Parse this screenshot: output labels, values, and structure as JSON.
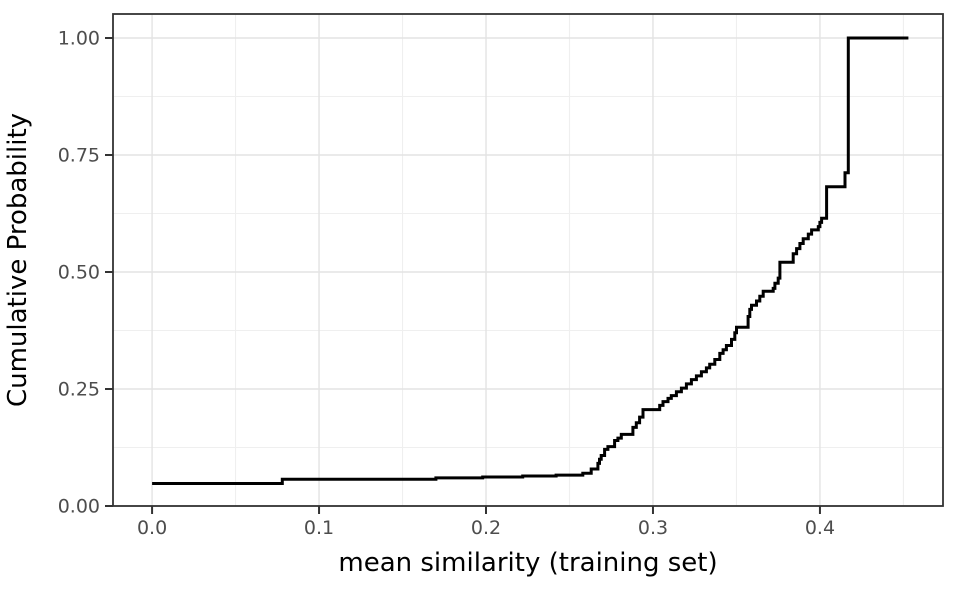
{
  "chart_data": {
    "type": "line",
    "subtype": "ecdf_step",
    "title": "",
    "xlabel": "mean similarity (training set)",
    "ylabel": "Cumulative Probability",
    "xlim": [
      -0.0234,
      0.4737
    ],
    "ylim": [
      0,
      1.0513
    ],
    "grid": "on",
    "legend": "none",
    "x_ticks": {
      "values": [
        0.0,
        0.1,
        0.2,
        0.3,
        0.4
      ],
      "labels": [
        "0.0",
        "0.1",
        "0.2",
        "0.3",
        "0.4"
      ]
    },
    "x_minor_ticks": [
      0.05,
      0.15,
      0.25,
      0.35,
      0.45
    ],
    "y_ticks": {
      "values": [
        0.0,
        0.25,
        0.5,
        0.75,
        1.0
      ],
      "labels": [
        "0.00",
        "0.25",
        "0.50",
        "0.75",
        "1.00"
      ]
    },
    "y_minor_ticks": [
      0.125,
      0.375,
      0.625,
      0.875
    ],
    "series": [
      {
        "name": "ecdf",
        "color": "#000000",
        "points": [
          [
            0.0,
            0.048
          ],
          [
            0.078,
            0.057
          ],
          [
            0.17,
            0.06
          ],
          [
            0.198,
            0.062
          ],
          [
            0.222,
            0.064
          ],
          [
            0.242,
            0.066
          ],
          [
            0.258,
            0.07
          ],
          [
            0.263,
            0.079
          ],
          [
            0.267,
            0.091
          ],
          [
            0.268,
            0.1
          ],
          [
            0.269,
            0.108
          ],
          [
            0.271,
            0.121
          ],
          [
            0.273,
            0.127
          ],
          [
            0.277,
            0.14
          ],
          [
            0.279,
            0.145
          ],
          [
            0.281,
            0.153
          ],
          [
            0.288,
            0.168
          ],
          [
            0.29,
            0.178
          ],
          [
            0.292,
            0.19
          ],
          [
            0.294,
            0.206
          ],
          [
            0.304,
            0.215
          ],
          [
            0.306,
            0.223
          ],
          [
            0.309,
            0.23
          ],
          [
            0.311,
            0.236
          ],
          [
            0.314,
            0.244
          ],
          [
            0.317,
            0.252
          ],
          [
            0.32,
            0.261
          ],
          [
            0.323,
            0.27
          ],
          [
            0.326,
            0.278
          ],
          [
            0.329,
            0.287
          ],
          [
            0.332,
            0.295
          ],
          [
            0.334,
            0.303
          ],
          [
            0.337,
            0.313
          ],
          [
            0.34,
            0.326
          ],
          [
            0.342,
            0.334
          ],
          [
            0.344,
            0.343
          ],
          [
            0.347,
            0.356
          ],
          [
            0.349,
            0.37
          ],
          [
            0.35,
            0.382
          ],
          [
            0.357,
            0.405
          ],
          [
            0.358,
            0.42
          ],
          [
            0.359,
            0.429
          ],
          [
            0.362,
            0.438
          ],
          [
            0.364,
            0.448
          ],
          [
            0.366,
            0.459
          ],
          [
            0.372,
            0.465
          ],
          [
            0.373,
            0.476
          ],
          [
            0.375,
            0.487
          ],
          [
            0.376,
            0.521
          ],
          [
            0.384,
            0.539
          ],
          [
            0.386,
            0.55
          ],
          [
            0.388,
            0.561
          ],
          [
            0.39,
            0.571
          ],
          [
            0.393,
            0.581
          ],
          [
            0.395,
            0.59
          ],
          [
            0.399,
            0.597
          ],
          [
            0.4,
            0.606
          ],
          [
            0.401,
            0.615
          ],
          [
            0.404,
            0.682
          ],
          [
            0.415,
            0.712
          ],
          [
            0.417,
            1.0
          ],
          [
            0.453,
            1.0
          ]
        ]
      }
    ]
  },
  "style": {
    "background": "#ffffff",
    "panel_background": "#ffffff",
    "line_color": "#000000",
    "grid_major_color": "#e3e3e3",
    "grid_minor_color": "#efefef",
    "panel_border_color": "#333333",
    "tick_mark_color": "#333333",
    "tick_label_color": "#4d4d4d",
    "axis_title_color": "#000000"
  }
}
